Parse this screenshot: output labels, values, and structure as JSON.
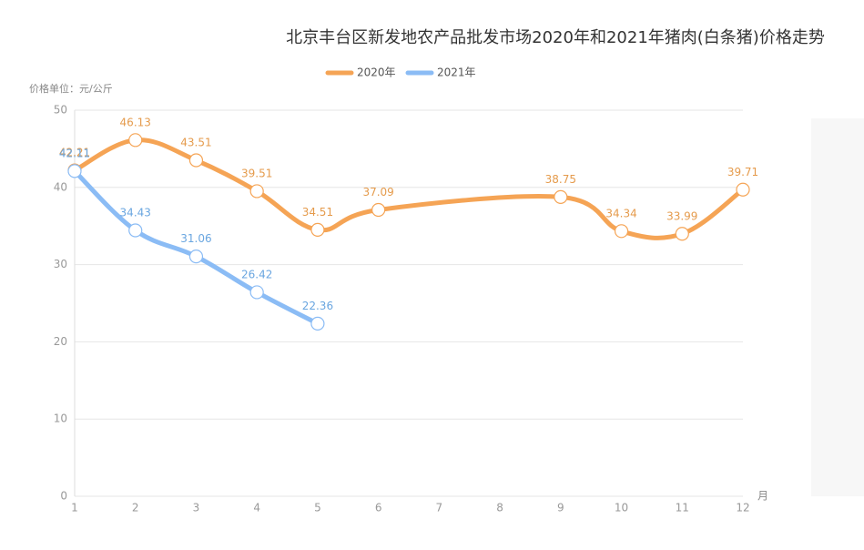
{
  "chart_data": {
    "type": "line",
    "title": "北京丰台区新发地农产品批发市场2020年和2021年猪肉(白条猪)价格走势",
    "y_label": "价格单位：元/公斤",
    "x_label": "月",
    "categories": [
      "1",
      "2",
      "3",
      "4",
      "5",
      "6",
      "7",
      "8",
      "9",
      "10",
      "11",
      "12"
    ],
    "series": [
      {
        "name": "2020年",
        "color": "#f5a455",
        "label_color": "#e59b4c",
        "values": [
          42.21,
          46.13,
          43.51,
          39.51,
          34.51,
          37.09,
          null,
          null,
          38.75,
          34.34,
          33.99,
          39.71
        ]
      },
      {
        "name": "2021年",
        "color": "#8bbcf5",
        "label_color": "#6aa6e0",
        "values": [
          42.11,
          34.43,
          31.06,
          26.42,
          22.36,
          null,
          null,
          null,
          null,
          null,
          null,
          null
        ]
      }
    ],
    "connect_nulls": true,
    "ylim": [
      0,
      50
    ],
    "yticks": [
      0,
      10,
      20,
      30,
      40,
      50
    ],
    "grid": true
  }
}
